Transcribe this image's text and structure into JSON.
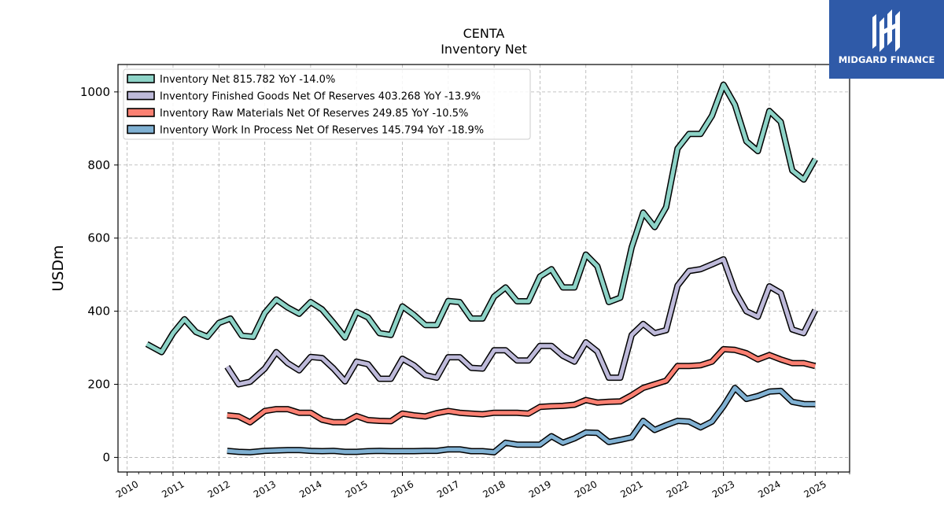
{
  "chart_data": {
    "type": "line",
    "title": "CENTA",
    "subtitle": "Inventory Net",
    "ylabel": "USDm",
    "xlabel": "",
    "ylim": [
      -40,
      1075
    ],
    "xlim": [
      2009.8,
      2025.75
    ],
    "yticks": [
      0,
      200,
      400,
      600,
      800,
      1000
    ],
    "xticks": [
      "2010",
      "2011",
      "2012",
      "2013",
      "2014",
      "2015",
      "2016",
      "2017",
      "2018",
      "2019",
      "2020",
      "2021",
      "2022",
      "2023",
      "2024",
      "2025"
    ],
    "grid": true,
    "legend_position": "top-left",
    "series": [
      {
        "name": "Inventory Net  815.782 YoY -14.0%",
        "color": "#8dd3c7",
        "x": [
          2010.43,
          2010.75,
          2011.0,
          2011.25,
          2011.5,
          2011.75,
          2012.0,
          2012.25,
          2012.5,
          2012.75,
          2013.0,
          2013.25,
          2013.5,
          2013.75,
          2014.0,
          2014.25,
          2014.5,
          2014.75,
          2015.0,
          2015.25,
          2015.5,
          2015.75,
          2016.0,
          2016.25,
          2016.5,
          2016.75,
          2017.0,
          2017.25,
          2017.5,
          2017.75,
          2018.0,
          2018.25,
          2018.5,
          2018.75,
          2019.0,
          2019.25,
          2019.5,
          2019.75,
          2020.0,
          2020.25,
          2020.5,
          2020.75,
          2021.0,
          2021.25,
          2021.5,
          2021.75,
          2022.0,
          2022.25,
          2022.5,
          2022.75,
          2023.0,
          2023.25,
          2023.5,
          2023.75,
          2024.0,
          2024.25,
          2024.5,
          2024.75,
          2025.0
        ],
        "values": [
          310,
          288,
          340,
          378,
          343,
          330,
          368,
          380,
          333,
          330,
          395,
          432,
          410,
          393,
          425,
          405,
          368,
          328,
          398,
          383,
          340,
          335,
          413,
          390,
          362,
          362,
          428,
          425,
          380,
          380,
          440,
          465,
          427,
          427,
          495,
          515,
          465,
          465,
          555,
          523,
          425,
          437,
          575,
          670,
          630,
          685,
          845,
          885,
          885,
          935,
          1020,
          965,
          865,
          838,
          948,
          918,
          785,
          760,
          815.782
        ]
      },
      {
        "name": "Inventory Finished Goods Net Of Reserves  403.268 YoY -13.9%",
        "color": "#bebada",
        "x": [
          2012.18,
          2012.43,
          2012.68,
          2013.0,
          2013.25,
          2013.5,
          2013.75,
          2014.0,
          2014.25,
          2014.5,
          2014.75,
          2015.0,
          2015.25,
          2015.5,
          2015.75,
          2016.0,
          2016.25,
          2016.5,
          2016.75,
          2017.0,
          2017.25,
          2017.5,
          2017.75,
          2018.0,
          2018.25,
          2018.5,
          2018.75,
          2019.0,
          2019.25,
          2019.5,
          2019.75,
          2020.0,
          2020.25,
          2020.5,
          2020.75,
          2021.0,
          2021.25,
          2021.5,
          2021.75,
          2022.0,
          2022.25,
          2022.5,
          2022.75,
          2023.0,
          2023.25,
          2023.5,
          2023.75,
          2024.0,
          2024.25,
          2024.5,
          2024.75,
          2025.0
        ],
        "values": [
          248,
          200,
          207,
          243,
          288,
          258,
          238,
          275,
          272,
          243,
          208,
          262,
          255,
          215,
          215,
          270,
          252,
          225,
          218,
          274,
          274,
          245,
          243,
          293,
          293,
          265,
          265,
          305,
          305,
          278,
          262,
          315,
          290,
          218,
          218,
          335,
          365,
          340,
          348,
          470,
          510,
          515,
          528,
          542,
          455,
          400,
          385,
          468,
          450,
          350,
          340,
          403.268
        ]
      },
      {
        "name": "Inventory Raw Materials Net Of Reserves  249.85 YoY -10.5%",
        "color": "#fb8072",
        "x": [
          2012.18,
          2012.43,
          2012.68,
          2013.0,
          2013.25,
          2013.5,
          2013.75,
          2014.0,
          2014.25,
          2014.5,
          2014.75,
          2015.0,
          2015.25,
          2015.5,
          2015.75,
          2016.0,
          2016.25,
          2016.5,
          2016.75,
          2017.0,
          2017.25,
          2017.5,
          2017.75,
          2018.0,
          2018.25,
          2018.5,
          2018.75,
          2019.0,
          2019.25,
          2019.5,
          2019.75,
          2020.0,
          2020.25,
          2020.5,
          2020.75,
          2021.0,
          2021.25,
          2021.5,
          2021.75,
          2022.0,
          2022.25,
          2022.5,
          2022.75,
          2023.0,
          2023.25,
          2023.5,
          2023.75,
          2024.0,
          2024.25,
          2024.5,
          2024.75,
          2025.0
        ],
        "values": [
          115,
          112,
          96,
          127,
          132,
          132,
          122,
          122,
          103,
          96,
          96,
          113,
          102,
          100,
          99,
          120,
          115,
          112,
          121,
          127,
          122,
          120,
          118,
          122,
          122,
          122,
          120,
          138,
          140,
          141,
          144,
          157,
          150,
          152,
          153,
          170,
          190,
          200,
          210,
          250,
          250,
          252,
          262,
          296,
          294,
          285,
          268,
          280,
          268,
          258,
          258,
          249.85
        ]
      },
      {
        "name": "Inventory Work In Process Net Of Reserves  145.794 YoY -18.9%",
        "color": "#80b1d3",
        "x": [
          2012.18,
          2012.43,
          2012.68,
          2013.0,
          2013.25,
          2013.5,
          2013.75,
          2014.0,
          2014.25,
          2014.5,
          2014.75,
          2015.0,
          2015.25,
          2015.5,
          2015.75,
          2016.0,
          2016.25,
          2016.5,
          2016.75,
          2017.0,
          2017.25,
          2017.5,
          2017.75,
          2018.0,
          2018.25,
          2018.5,
          2018.75,
          2019.0,
          2019.25,
          2019.5,
          2019.75,
          2020.0,
          2020.25,
          2020.5,
          2020.75,
          2021.0,
          2021.25,
          2021.5,
          2021.75,
          2022.0,
          2022.25,
          2022.5,
          2022.75,
          2023.0,
          2023.25,
          2023.5,
          2023.75,
          2024.0,
          2024.25,
          2024.5,
          2024.75,
          2025.0
        ],
        "values": [
          18,
          15,
          14,
          18,
          19,
          20,
          20,
          18,
          17,
          18,
          15,
          15,
          17,
          18,
          17,
          17,
          17,
          18,
          18,
          22,
          22,
          17,
          17,
          14,
          40,
          35,
          35,
          35,
          58,
          40,
          52,
          68,
          67,
          42,
          48,
          55,
          100,
          75,
          88,
          100,
          98,
          82,
          98,
          140,
          190,
          160,
          168,
          180,
          182,
          152,
          146,
          145.794
        ]
      }
    ]
  },
  "logo": {
    "text": "MIDGARD FINANCE",
    "bg_color": "#2f5aa8"
  }
}
